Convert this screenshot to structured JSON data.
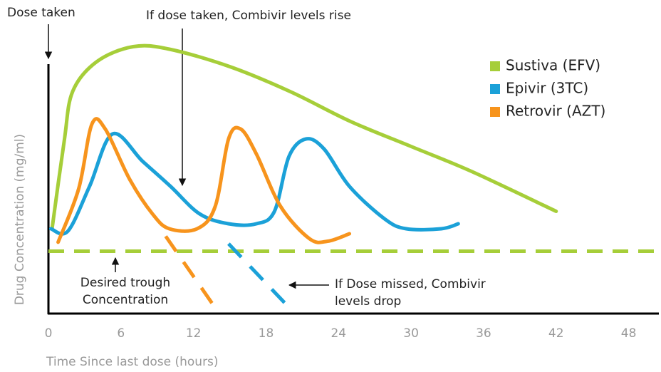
{
  "chart_data": {
    "type": "line",
    "xlabel": "Time Since last dose (hours)",
    "ylabel": "Drug Concentration (mg/ml)",
    "xlim": [
      0,
      50.5
    ],
    "xticks": [
      0,
      6,
      12,
      18,
      24,
      30,
      36,
      42,
      48
    ],
    "ylim": [
      0,
      110
    ],
    "legend": "top-right",
    "series": [
      {
        "name": "Sustiva (EFV)",
        "color": "#a6ce39",
        "x": [
          0.3,
          1.3,
          2,
          4,
          7,
          10,
          15,
          20,
          25,
          30,
          35,
          42
        ],
        "values": [
          34,
          69,
          89,
          101,
          107,
          106,
          99,
          89,
          77,
          67,
          57,
          41
        ]
      },
      {
        "name": "Epivir (3TC)",
        "color": "#1ba1d8",
        "x": [
          0.2,
          1.6,
          3.4,
          5.3,
          7.8,
          10.1,
          12.5,
          14.9,
          17.2,
          18.7,
          19.9,
          21.3,
          22.8,
          24.9,
          27.8,
          29.6,
          32.5,
          33.9
        ],
        "values": [
          34,
          33,
          51,
          72,
          61,
          51,
          40,
          36,
          36,
          41,
          63,
          70,
          66,
          51,
          38,
          34,
          34,
          36
        ],
        "dashed": {
          "x": [
            14.9,
            19.6
          ],
          "values": [
            28,
            4
          ]
        }
      },
      {
        "name": "Retrovir (AZT)",
        "color": "#f7941d",
        "x": [
          0.8,
          2.5,
          3.6,
          4.7,
          6.7,
          8.6,
          10,
          12.3,
          13.8,
          14.9,
          15.9,
          17.2,
          19.2,
          21.6,
          23.1,
          24.9
        ],
        "values": [
          28.6,
          50,
          76,
          74,
          54,
          40,
          34,
          34,
          43,
          70,
          74,
          64,
          43,
          30,
          29,
          32
        ],
        "dashed": {
          "x": [
            9.7,
            13.7
          ],
          "values": [
            31,
            3
          ]
        }
      }
    ],
    "reference": {
      "value": 25,
      "color": "#a6ce39"
    },
    "annotations": {
      "dose_taken": "Dose taken",
      "rise": "If dose taken, Combivir levels rise",
      "trough": [
        "Desired trough",
        "Concentration"
      ],
      "missed": [
        "If Dose missed, Combivir",
        "levels drop"
      ]
    }
  }
}
